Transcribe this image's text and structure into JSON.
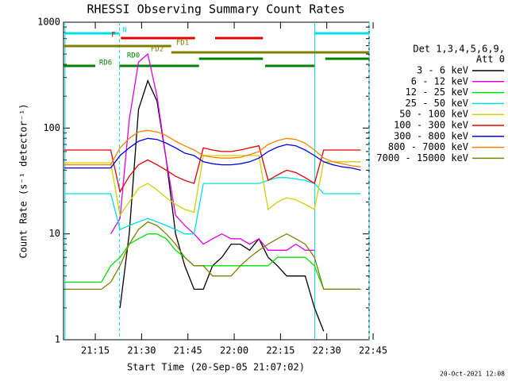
{
  "chart_data": {
    "type": "line",
    "title": "RHESSI Observing Summary Count Rates",
    "x_label": "Start Time (20-Sep-05 21:07:02)",
    "y_label": "Count Rate (s⁻¹ detector⁻¹)",
    "footer": "20-Oct-2021 12:08",
    "legend_header": [
      "Det 1,3,4,5,6,9,",
      "Att 0"
    ],
    "log_y": true,
    "xlim": [
      4.7,
      103.7
    ],
    "xticks": [
      {
        "value": 15,
        "label": "21:15"
      },
      {
        "value": 30,
        "label": "21:30"
      },
      {
        "value": 45,
        "label": "21:45"
      },
      {
        "value": 60,
        "label": "22:00"
      },
      {
        "value": 75,
        "label": "22:15"
      },
      {
        "value": 90,
        "label": "22:30"
      },
      {
        "value": 105,
        "label": "22:45"
      }
    ],
    "ylim": [
      1,
      1000
    ],
    "yticks": [
      1,
      10,
      100,
      1000
    ],
    "x": [
      5,
      8,
      11,
      14,
      17,
      20,
      23,
      26,
      29,
      32,
      35,
      38,
      41,
      44,
      47,
      50,
      53,
      56,
      59,
      62,
      65,
      68,
      71,
      74,
      77,
      80,
      83,
      86,
      89,
      92,
      95,
      98,
      101
    ],
    "series": [
      {
        "name": "3 - 6 keV",
        "color": "#000000",
        "values": [
          null,
          null,
          null,
          null,
          null,
          null,
          2,
          10,
          150,
          280,
          180,
          50,
          10,
          5,
          3,
          3,
          5,
          6,
          8,
          8,
          7,
          9,
          6,
          5,
          4,
          4,
          4,
          2,
          1.2,
          null,
          null,
          null,
          null
        ]
      },
      {
        "name": "6 - 12 keV",
        "color": "#e000e0",
        "values": [
          null,
          null,
          null,
          null,
          null,
          10,
          14,
          120,
          420,
          500,
          200,
          50,
          15,
          12,
          10,
          8,
          9,
          10,
          9,
          9,
          8,
          9,
          7,
          7,
          7,
          8,
          7,
          7,
          null,
          null,
          null,
          null,
          null
        ]
      },
      {
        "name": "12 - 25 keV",
        "color": "#00e000",
        "values": [
          3.5,
          3.5,
          3.5,
          3.5,
          3.5,
          5,
          6,
          8,
          9,
          10,
          10,
          9,
          7,
          6,
          5,
          5,
          5,
          5,
          5,
          5,
          5,
          5,
          5,
          6,
          6,
          6,
          6,
          5,
          3,
          3,
          3,
          3,
          3
        ]
      },
      {
        "name": "25 - 50 keV",
        "color": "#00e0e0",
        "values": [
          24,
          24,
          24,
          24,
          24,
          24,
          11,
          12,
          13,
          14,
          13,
          12,
          11,
          10,
          10,
          30,
          30,
          30,
          30,
          30,
          30,
          30,
          32,
          34,
          34,
          33,
          32,
          30,
          24,
          24,
          24,
          24,
          24
        ]
      },
      {
        "name": "50 - 100 keV",
        "color": "#d0d000",
        "values": [
          47,
          47,
          47,
          47,
          47,
          47,
          15,
          20,
          27,
          30,
          26,
          22,
          19,
          17,
          16,
          55,
          55,
          55,
          55,
          55,
          55,
          55,
          17,
          20,
          22,
          21,
          19,
          17,
          48,
          48,
          48,
          48,
          48
        ]
      },
      {
        "name": "100 - 300 keV",
        "color": "#e00000",
        "values": [
          62,
          62,
          62,
          62,
          62,
          62,
          25,
          35,
          45,
          50,
          45,
          40,
          35,
          32,
          30,
          65,
          62,
          60,
          60,
          62,
          65,
          68,
          32,
          36,
          40,
          38,
          34,
          30,
          62,
          62,
          62,
          62,
          62
        ]
      },
      {
        "name": "300 - 800 keV",
        "color": "#0000e0",
        "values": [
          42,
          42,
          42,
          42,
          42,
          42,
          55,
          65,
          75,
          80,
          78,
          72,
          65,
          58,
          55,
          48,
          46,
          45,
          45,
          46,
          48,
          52,
          60,
          66,
          70,
          68,
          62,
          55,
          48,
          45,
          43,
          42,
          40
        ]
      },
      {
        "name": "800 - 7000 keV",
        "color": "#ff8000",
        "values": [
          45,
          45,
          45,
          45,
          45,
          45,
          65,
          80,
          92,
          95,
          92,
          85,
          75,
          68,
          62,
          55,
          53,
          52,
          52,
          53,
          56,
          60,
          70,
          76,
          80,
          78,
          72,
          62,
          52,
          48,
          46,
          44,
          43
        ]
      },
      {
        "name": "7000 - 15000 keV",
        "color": "#808000",
        "values": [
          3,
          3,
          3,
          3,
          3,
          3.5,
          5,
          8,
          11,
          13,
          12,
          10,
          8,
          6,
          5,
          5,
          4,
          4,
          4,
          5,
          6,
          7,
          8,
          9,
          10,
          9,
          8,
          6,
          3,
          3,
          3,
          3,
          3
        ]
      }
    ],
    "state_bars": [
      {
        "name": "N",
        "color": "#00e0e0",
        "segments": [
          [
            5.2,
            22.8
          ],
          [
            86.1,
            103.7
          ]
        ]
      },
      {
        "name": "F",
        "color": "#e00000",
        "segments": [
          [
            23.3,
            47.3
          ],
          [
            53.8,
            69.3
          ]
        ]
      },
      {
        "name": "FD1",
        "color": "#808000",
        "segments": [
          [
            4.7,
            39.6
          ]
        ]
      },
      {
        "name": "FD2",
        "color": "#808000",
        "segments": [
          [
            39.6,
            103.7
          ]
        ]
      },
      {
        "name": "RD0",
        "color": "#008000",
        "segments": [
          [
            48.6,
            69.3
          ],
          [
            89.5,
            103.7
          ]
        ]
      },
      {
        "name": "RD6",
        "color": "#008000",
        "segments": [
          [
            4.7,
            15
          ],
          [
            22.8,
            48.6
          ],
          [
            70,
            86
          ]
        ]
      }
    ]
  }
}
